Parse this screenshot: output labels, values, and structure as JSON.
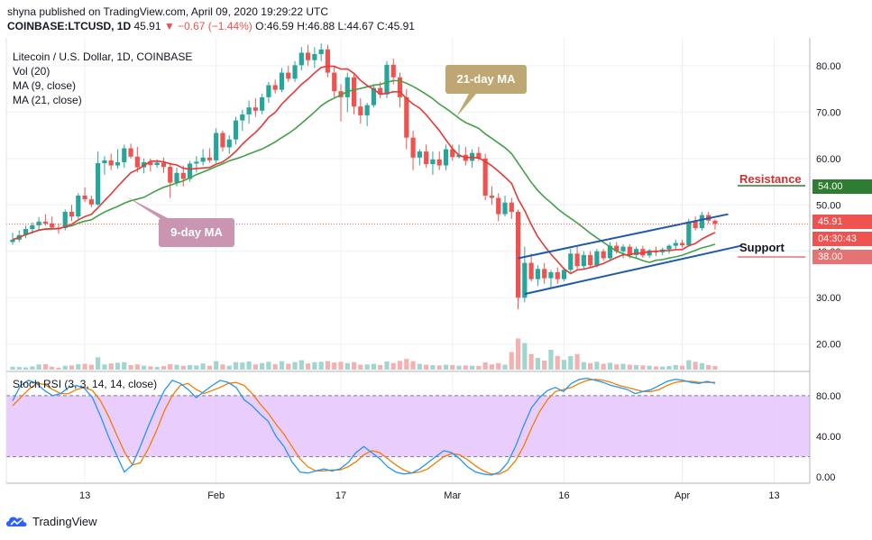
{
  "header": {
    "published_line": "shyna published on TradingView.com, April 09, 2020 19:29:22 UTC",
    "symbol": "COINBASE:LTCUSD, 1D",
    "last": "45.91",
    "change": "−0.67 (−1.44%)",
    "ohlc": "O:46.59 H:46.88 L:44.67 C:45.91"
  },
  "legend": {
    "title": "Litecoin / U.S. Dollar, 1D, COINBASE",
    "vol": "Vol (20)",
    "ma9": "MA (9, close)",
    "ma21": "MA (21, close)"
  },
  "annotations": {
    "ma21_callout": "21-day MA",
    "ma9_callout": "9-day MA",
    "resistance": "Resistance",
    "support": "Support"
  },
  "price_tags": {
    "resistance_value": "54.00",
    "last_price": "45.91",
    "countdown": "04:30:43",
    "support_value": "38.00"
  },
  "rsi_label": "Stoch RSI (3, 3, 14, 14, close)",
  "footer": {
    "brand": "TradingView"
  },
  "colors": {
    "up": "#26a69a",
    "down": "#ef5350",
    "ma9": "#e53935",
    "ma21": "#43a047",
    "channel": "#1e5aa8",
    "rsi_k": "#2196f3",
    "rsi_d": "#f57c00",
    "rsi_band": "#e1bdfc",
    "callout_ma21": "#bfa773",
    "callout_ma9": "#c995b0",
    "resistance": "#d32f2f",
    "support_tag": "#e57373",
    "resistance_tag": "#2e7d32"
  },
  "chart_data": {
    "type": "candlestick",
    "y_ticks": [
      "80.00",
      "70.00",
      "60.00",
      "50.00",
      "40.00",
      "30.00",
      "20.00"
    ],
    "ylim": [
      14.5,
      86
    ],
    "x_ticks": [
      "13",
      "Feb",
      "17",
      "Mar",
      "16",
      "Apr",
      "13"
    ],
    "rsi_ticks": [
      "80.00",
      "40.00",
      "0.00"
    ],
    "rsi_lim": [
      -6,
      102
    ],
    "rsi_band": [
      20,
      80
    ],
    "resistance_level": 54,
    "support_level": 38,
    "last_price": 45.91,
    "candles": [
      {
        "o": 42.0,
        "h": 44.0,
        "l": 41.4,
        "c": 42.5,
        "v": 0.9
      },
      {
        "o": 42.5,
        "h": 44.5,
        "l": 42.0,
        "c": 43.5,
        "v": 0.8
      },
      {
        "o": 43.5,
        "h": 45.5,
        "l": 42.8,
        "c": 44.8,
        "v": 0.7
      },
      {
        "o": 44.8,
        "h": 46.2,
        "l": 43.8,
        "c": 45.6,
        "v": 1.0
      },
      {
        "o": 45.6,
        "h": 47.4,
        "l": 44.4,
        "c": 46.4,
        "v": 1.6
      },
      {
        "o": 46.4,
        "h": 48.0,
        "l": 45.5,
        "c": 46.0,
        "v": 1.7
      },
      {
        "o": 46.0,
        "h": 47.5,
        "l": 44.8,
        "c": 45.1,
        "v": 0.9
      },
      {
        "o": 45.1,
        "h": 46.0,
        "l": 43.8,
        "c": 45.0,
        "v": 0.6
      },
      {
        "o": 45.0,
        "h": 49.0,
        "l": 44.5,
        "c": 48.5,
        "v": 1.2
      },
      {
        "o": 48.5,
        "h": 50.0,
        "l": 46.5,
        "c": 47.5,
        "v": 1.3
      },
      {
        "o": 47.5,
        "h": 52.5,
        "l": 47.0,
        "c": 52.0,
        "v": 1.7
      },
      {
        "o": 52.0,
        "h": 53.8,
        "l": 50.6,
        "c": 51.2,
        "v": 1.8
      },
      {
        "o": 51.2,
        "h": 52.0,
        "l": 49.5,
        "c": 50.1,
        "v": 1.5
      },
      {
        "o": 50.1,
        "h": 61.5,
        "l": 49.8,
        "c": 59.0,
        "v": 3.8
      },
      {
        "o": 59.0,
        "h": 60.5,
        "l": 56.5,
        "c": 59.6,
        "v": 1.6
      },
      {
        "o": 59.6,
        "h": 61.0,
        "l": 57.5,
        "c": 58.5,
        "v": 1.9
      },
      {
        "o": 58.5,
        "h": 62.0,
        "l": 57.8,
        "c": 59.2,
        "v": 2.1
      },
      {
        "o": 59.2,
        "h": 63.0,
        "l": 58.0,
        "c": 62.2,
        "v": 2.3
      },
      {
        "o": 62.2,
        "h": 63.2,
        "l": 60.0,
        "c": 60.4,
        "v": 1.4
      },
      {
        "o": 60.4,
        "h": 62.5,
        "l": 57.0,
        "c": 58.1,
        "v": 1.6
      },
      {
        "o": 58.1,
        "h": 60.0,
        "l": 56.8,
        "c": 59.2,
        "v": 1.2
      },
      {
        "o": 59.2,
        "h": 60.0,
        "l": 57.2,
        "c": 58.6,
        "v": 1.0
      },
      {
        "o": 58.6,
        "h": 59.8,
        "l": 58.0,
        "c": 59.1,
        "v": 0.8
      },
      {
        "o": 59.1,
        "h": 60.2,
        "l": 56.9,
        "c": 58.2,
        "v": 1.1
      },
      {
        "o": 58.2,
        "h": 59.0,
        "l": 51.5,
        "c": 54.8,
        "v": 1.7
      },
      {
        "o": 54.8,
        "h": 58.0,
        "l": 54.0,
        "c": 56.9,
        "v": 1.5
      },
      {
        "o": 56.9,
        "h": 58.5,
        "l": 54.0,
        "c": 55.6,
        "v": 1.2
      },
      {
        "o": 55.6,
        "h": 59.5,
        "l": 55.0,
        "c": 58.9,
        "v": 1.4
      },
      {
        "o": 58.9,
        "h": 60.5,
        "l": 57.0,
        "c": 59.3,
        "v": 1.3
      },
      {
        "o": 59.3,
        "h": 62.0,
        "l": 58.5,
        "c": 60.2,
        "v": 1.9
      },
      {
        "o": 60.2,
        "h": 62.2,
        "l": 59.1,
        "c": 59.6,
        "v": 1.2
      },
      {
        "o": 59.6,
        "h": 66.5,
        "l": 59.0,
        "c": 65.5,
        "v": 2.6
      },
      {
        "o": 65.5,
        "h": 66.0,
        "l": 61.5,
        "c": 62.4,
        "v": 1.6
      },
      {
        "o": 62.4,
        "h": 65.0,
        "l": 61.0,
        "c": 64.1,
        "v": 1.2
      },
      {
        "o": 64.1,
        "h": 69.0,
        "l": 63.0,
        "c": 68.2,
        "v": 2.3
      },
      {
        "o": 68.2,
        "h": 70.5,
        "l": 66.0,
        "c": 69.5,
        "v": 2.2
      },
      {
        "o": 69.5,
        "h": 72.5,
        "l": 67.5,
        "c": 71.0,
        "v": 2.5
      },
      {
        "o": 71.0,
        "h": 73.0,
        "l": 69.0,
        "c": 70.3,
        "v": 1.6
      },
      {
        "o": 70.3,
        "h": 74.0,
        "l": 69.5,
        "c": 73.2,
        "v": 2.0
      },
      {
        "o": 73.2,
        "h": 76.5,
        "l": 72.0,
        "c": 75.8,
        "v": 2.4
      },
      {
        "o": 75.8,
        "h": 77.0,
        "l": 74.0,
        "c": 74.8,
        "v": 1.7
      },
      {
        "o": 74.8,
        "h": 79.5,
        "l": 74.3,
        "c": 78.5,
        "v": 2.6
      },
      {
        "o": 78.5,
        "h": 80.0,
        "l": 76.5,
        "c": 77.2,
        "v": 1.8
      },
      {
        "o": 77.2,
        "h": 81.0,
        "l": 76.5,
        "c": 80.1,
        "v": 2.3
      },
      {
        "o": 80.1,
        "h": 84.0,
        "l": 79.0,
        "c": 82.8,
        "v": 2.9
      },
      {
        "o": 82.8,
        "h": 84.5,
        "l": 80.0,
        "c": 81.2,
        "v": 1.9
      },
      {
        "o": 81.2,
        "h": 84.0,
        "l": 79.5,
        "c": 82.5,
        "v": 2.3
      },
      {
        "o": 82.5,
        "h": 84.8,
        "l": 81.0,
        "c": 83.5,
        "v": 2.4
      },
      {
        "o": 83.5,
        "h": 84.5,
        "l": 77.5,
        "c": 78.5,
        "v": 2.6
      },
      {
        "o": 78.5,
        "h": 80.0,
        "l": 73.0,
        "c": 74.5,
        "v": 2.2
      },
      {
        "o": 74.5,
        "h": 76.0,
        "l": 68.0,
        "c": 73.2,
        "v": 2.4
      },
      {
        "o": 73.2,
        "h": 78.5,
        "l": 70.0,
        "c": 77.5,
        "v": 2.0
      },
      {
        "o": 77.5,
        "h": 78.5,
        "l": 69.5,
        "c": 71.2,
        "v": 2.3
      },
      {
        "o": 71.2,
        "h": 73.0,
        "l": 67.5,
        "c": 69.3,
        "v": 1.5
      },
      {
        "o": 69.3,
        "h": 72.0,
        "l": 67.0,
        "c": 71.5,
        "v": 1.6
      },
      {
        "o": 71.5,
        "h": 76.0,
        "l": 71.0,
        "c": 75.2,
        "v": 1.8
      },
      {
        "o": 75.2,
        "h": 76.5,
        "l": 73.0,
        "c": 73.8,
        "v": 1.4
      },
      {
        "o": 73.8,
        "h": 81.0,
        "l": 73.0,
        "c": 80.2,
        "v": 2.5
      },
      {
        "o": 80.2,
        "h": 81.5,
        "l": 76.0,
        "c": 77.5,
        "v": 2.0
      },
      {
        "o": 77.5,
        "h": 78.5,
        "l": 71.0,
        "c": 73.2,
        "v": 2.7
      },
      {
        "o": 73.2,
        "h": 75.0,
        "l": 62.0,
        "c": 64.5,
        "v": 3.3
      },
      {
        "o": 64.5,
        "h": 66.0,
        "l": 57.5,
        "c": 60.2,
        "v": 2.6
      },
      {
        "o": 60.2,
        "h": 62.0,
        "l": 58.5,
        "c": 61.5,
        "v": 1.8
      },
      {
        "o": 61.5,
        "h": 63.0,
        "l": 58.0,
        "c": 58.8,
        "v": 1.5
      },
      {
        "o": 58.8,
        "h": 61.5,
        "l": 56.5,
        "c": 59.8,
        "v": 1.4
      },
      {
        "o": 59.8,
        "h": 61.5,
        "l": 57.5,
        "c": 58.5,
        "v": 1.3
      },
      {
        "o": 58.5,
        "h": 63.0,
        "l": 57.5,
        "c": 62.0,
        "v": 1.5
      },
      {
        "o": 62.0,
        "h": 63.0,
        "l": 59.5,
        "c": 60.3,
        "v": 1.4
      },
      {
        "o": 60.3,
        "h": 63.0,
        "l": 60.0,
        "c": 60.8,
        "v": 1.2
      },
      {
        "o": 60.8,
        "h": 62.5,
        "l": 58.5,
        "c": 59.5,
        "v": 1.3
      },
      {
        "o": 59.5,
        "h": 62.0,
        "l": 58.0,
        "c": 61.2,
        "v": 1.2
      },
      {
        "o": 61.2,
        "h": 62.5,
        "l": 59.5,
        "c": 60.0,
        "v": 1.1
      },
      {
        "o": 60.0,
        "h": 61.0,
        "l": 51.0,
        "c": 52.0,
        "v": 2.2
      },
      {
        "o": 52.0,
        "h": 54.0,
        "l": 50.0,
        "c": 51.5,
        "v": 1.6
      },
      {
        "o": 51.5,
        "h": 52.5,
        "l": 46.5,
        "c": 48.0,
        "v": 2.0
      },
      {
        "o": 48.0,
        "h": 52.0,
        "l": 47.5,
        "c": 50.5,
        "v": 1.5
      },
      {
        "o": 50.5,
        "h": 51.5,
        "l": 47.0,
        "c": 48.5,
        "v": 5.4
      },
      {
        "o": 48.5,
        "h": 49.0,
        "l": 27.5,
        "c": 30.0,
        "v": 9.6
      },
      {
        "o": 30.0,
        "h": 41.0,
        "l": 29.0,
        "c": 37.5,
        "v": 8.2
      },
      {
        "o": 37.5,
        "h": 39.5,
        "l": 33.5,
        "c": 34.0,
        "v": 4.8
      },
      {
        "o": 34.0,
        "h": 37.0,
        "l": 32.5,
        "c": 36.2,
        "v": 3.6
      },
      {
        "o": 36.2,
        "h": 37.5,
        "l": 33.0,
        "c": 34.2,
        "v": 2.8
      },
      {
        "o": 34.2,
        "h": 36.0,
        "l": 32.0,
        "c": 35.5,
        "v": 6.1
      },
      {
        "o": 35.5,
        "h": 36.5,
        "l": 33.0,
        "c": 34.0,
        "v": 4.2
      },
      {
        "o": 34.0,
        "h": 36.5,
        "l": 33.5,
        "c": 36.0,
        "v": 3.0
      },
      {
        "o": 36.0,
        "h": 40.5,
        "l": 35.5,
        "c": 39.5,
        "v": 4.2
      },
      {
        "o": 39.5,
        "h": 41.0,
        "l": 36.0,
        "c": 36.8,
        "v": 4.8
      },
      {
        "o": 36.8,
        "h": 40.0,
        "l": 36.0,
        "c": 39.2,
        "v": 2.3
      },
      {
        "o": 39.2,
        "h": 40.0,
        "l": 36.5,
        "c": 37.0,
        "v": 2.0
      },
      {
        "o": 37.0,
        "h": 40.5,
        "l": 36.5,
        "c": 40.0,
        "v": 2.4
      },
      {
        "o": 40.0,
        "h": 40.5,
        "l": 38.0,
        "c": 38.5,
        "v": 1.8
      },
      {
        "o": 38.5,
        "h": 42.0,
        "l": 38.0,
        "c": 41.2,
        "v": 2.1
      },
      {
        "o": 41.2,
        "h": 42.0,
        "l": 39.5,
        "c": 40.0,
        "v": 1.6
      },
      {
        "o": 40.0,
        "h": 41.5,
        "l": 38.5,
        "c": 41.0,
        "v": 1.8
      },
      {
        "o": 41.0,
        "h": 41.5,
        "l": 38.5,
        "c": 39.2,
        "v": 1.5
      },
      {
        "o": 39.2,
        "h": 41.0,
        "l": 38.5,
        "c": 40.5,
        "v": 1.4
      },
      {
        "o": 40.5,
        "h": 41.2,
        "l": 38.6,
        "c": 39.1,
        "v": 1.3
      },
      {
        "o": 39.1,
        "h": 40.5,
        "l": 38.6,
        "c": 40.2,
        "v": 1.2
      },
      {
        "o": 40.2,
        "h": 41.0,
        "l": 39.0,
        "c": 39.8,
        "v": 1.0
      },
      {
        "o": 39.8,
        "h": 40.8,
        "l": 39.2,
        "c": 40.4,
        "v": 0.9
      },
      {
        "o": 40.4,
        "h": 41.5,
        "l": 39.5,
        "c": 41.2,
        "v": 1.1
      },
      {
        "o": 41.2,
        "h": 42.5,
        "l": 40.5,
        "c": 41.8,
        "v": 1.4
      },
      {
        "o": 41.8,
        "h": 42.5,
        "l": 40.8,
        "c": 41.3,
        "v": 1.2
      },
      {
        "o": 41.3,
        "h": 47.0,
        "l": 41.0,
        "c": 46.4,
        "v": 2.9
      },
      {
        "o": 46.4,
        "h": 47.5,
        "l": 44.5,
        "c": 45.0,
        "v": 2.4
      },
      {
        "o": 45.0,
        "h": 48.5,
        "l": 44.5,
        "c": 47.8,
        "v": 2.0
      },
      {
        "o": 47.8,
        "h": 48.5,
        "l": 46.0,
        "c": 46.6,
        "v": 1.4
      },
      {
        "o": 46.59,
        "h": 46.88,
        "l": 44.67,
        "c": 45.91,
        "v": 1.1
      }
    ],
    "rsi_k": [
      75,
      90,
      95,
      92,
      85,
      80,
      82,
      88,
      90,
      87,
      78,
      60,
      40,
      22,
      5,
      12,
      30,
      50,
      68,
      85,
      95,
      92,
      86,
      78,
      84,
      90,
      95,
      93,
      88,
      76,
      70,
      62,
      55,
      40,
      30,
      15,
      5,
      4,
      6,
      8,
      6,
      8,
      14,
      24,
      30,
      24,
      18,
      10,
      5,
      3,
      4,
      8,
      14,
      20,
      26,
      24,
      18,
      10,
      5,
      3,
      2,
      5,
      14,
      30,
      50,
      68,
      78,
      85,
      88,
      84,
      92,
      96,
      97,
      95,
      93,
      90,
      88,
      86,
      82,
      84,
      86,
      90,
      94,
      96,
      95,
      93,
      92,
      94,
      92
    ],
    "rsi_d": [
      70,
      78,
      86,
      92,
      91,
      86,
      82,
      82,
      86,
      88,
      85,
      75,
      60,
      42,
      25,
      12,
      14,
      28,
      45,
      65,
      80,
      90,
      92,
      86,
      82,
      85,
      88,
      92,
      93,
      90,
      82,
      72,
      63,
      52,
      42,
      30,
      18,
      10,
      6,
      6,
      7,
      7,
      10,
      15,
      22,
      26,
      24,
      18,
      12,
      7,
      4,
      5,
      8,
      14,
      20,
      23,
      22,
      17,
      11,
      6,
      3,
      3,
      7,
      16,
      30,
      48,
      64,
      76,
      84,
      86,
      88,
      92,
      95,
      96,
      95,
      93,
      90,
      88,
      86,
      84,
      84,
      86,
      90,
      93,
      94,
      94,
      93,
      93,
      93
    ],
    "ma9": [],
    "ma21": []
  }
}
